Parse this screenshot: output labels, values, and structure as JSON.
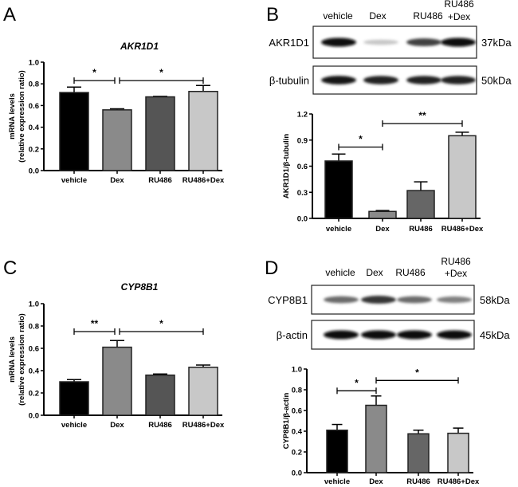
{
  "panels": {
    "A": {
      "letter": "A"
    },
    "B": {
      "letter": "B",
      "blot": {
        "lanes": [
          "vehicle",
          "Dex",
          "RU486",
          "RU486",
          "+Dex"
        ],
        "rows": [
          {
            "protein": "AKR1D1",
            "size": "37kDa",
            "band_intensity": [
              1.0,
              0.12,
              0.75,
              1.0
            ]
          },
          {
            "protein": "β-tubulin",
            "size": "50kDa",
            "band_intensity": [
              0.95,
              0.9,
              0.9,
              0.9
            ]
          }
        ]
      }
    },
    "C": {
      "letter": "C"
    },
    "D": {
      "letter": "D",
      "blot": {
        "lanes": [
          "vehicle",
          "Dex",
          "RU486",
          "RU486",
          "+Dex"
        ],
        "rows": [
          {
            "protein": "CYP8B1",
            "size": "58kDa",
            "band_intensity": [
              0.55,
              0.8,
              0.55,
              0.45
            ]
          },
          {
            "protein": "β-actin",
            "size": "45kDa",
            "band_intensity": [
              1.0,
              1.0,
              1.0,
              1.0
            ]
          }
        ]
      }
    }
  },
  "chart_data": [
    {
      "panel": "A",
      "type": "bar",
      "title": "AKR1D1",
      "ylabel": [
        "mRNA levels",
        "(relative expression ratio)"
      ],
      "categories": [
        "vehicle",
        "Dex",
        "RU486",
        "RU486+Dex"
      ],
      "values": [
        0.72,
        0.56,
        0.68,
        0.73
      ],
      "errors": [
        0.05,
        0.01,
        0.005,
        0.055
      ],
      "colors": [
        "#000000",
        "#8a8a8a",
        "#555555",
        "#c8c8c8"
      ],
      "ylim": [
        0,
        1.0
      ],
      "yticks": [
        "0.0",
        "0.2",
        "0.4",
        "0.6",
        "0.8",
        "1.0"
      ],
      "significance": [
        {
          "from": 0,
          "to": 1,
          "y": 0.83,
          "label": "*"
        },
        {
          "from": 1,
          "to": 3,
          "y": 0.83,
          "label": "*"
        }
      ]
    },
    {
      "panel": "B",
      "type": "bar",
      "title": "",
      "ylabel": [
        "AKR1D1/β-tubulin"
      ],
      "categories": [
        "vehicle",
        "Dex",
        "RU486",
        "RU486+Dex"
      ],
      "values": [
        0.66,
        0.08,
        0.32,
        0.95
      ],
      "errors": [
        0.08,
        0.01,
        0.1,
        0.04
      ],
      "colors": [
        "#000000",
        "#8a8a8a",
        "#666666",
        "#c8c8c8"
      ],
      "ylim": [
        0,
        1.2
      ],
      "yticks": [
        "0.0",
        "0.3",
        "0.6",
        "0.9",
        "1.2"
      ],
      "significance": [
        {
          "from": 0,
          "to": 1,
          "y": 0.82,
          "label": "*"
        },
        {
          "from": 1,
          "to": 3,
          "y": 1.09,
          "label": "**"
        }
      ]
    },
    {
      "panel": "C",
      "type": "bar",
      "title": "CYP8B1",
      "ylabel": [
        "mRNA levels",
        "(relative expression ratio)"
      ],
      "categories": [
        "vehicle",
        "Dex",
        "RU486",
        "RU486+Dex"
      ],
      "values": [
        0.3,
        0.61,
        0.36,
        0.43
      ],
      "errors": [
        0.02,
        0.06,
        0.01,
        0.02
      ],
      "colors": [
        "#000000",
        "#8a8a8a",
        "#555555",
        "#c8c8c8"
      ],
      "ylim": [
        0,
        1.0
      ],
      "yticks": [
        "0.0",
        "0.2",
        "0.4",
        "0.6",
        "0.8",
        "1.0"
      ],
      "significance": [
        {
          "from": 0,
          "to": 1,
          "y": 0.75,
          "label": "**"
        },
        {
          "from": 1,
          "to": 3,
          "y": 0.75,
          "label": "*"
        }
      ]
    },
    {
      "panel": "D",
      "type": "bar",
      "title": "",
      "ylabel": [
        "CYP8B1/β-actin"
      ],
      "categories": [
        "vehicle",
        "Dex",
        "RU486",
        "RU486+Dex"
      ],
      "values": [
        0.41,
        0.65,
        0.375,
        0.38
      ],
      "errors": [
        0.055,
        0.09,
        0.035,
        0.05
      ],
      "colors": [
        "#000000",
        "#8a8a8a",
        "#666666",
        "#c8c8c8"
      ],
      "ylim": [
        0,
        1.0
      ],
      "yticks": [
        "0.0",
        "0.2",
        "0.4",
        "0.6",
        "0.8",
        "1.0"
      ],
      "significance": [
        {
          "from": 0,
          "to": 1,
          "y": 0.79,
          "label": "*"
        },
        {
          "from": 1,
          "to": 3,
          "y": 0.89,
          "label": "*"
        }
      ]
    }
  ]
}
